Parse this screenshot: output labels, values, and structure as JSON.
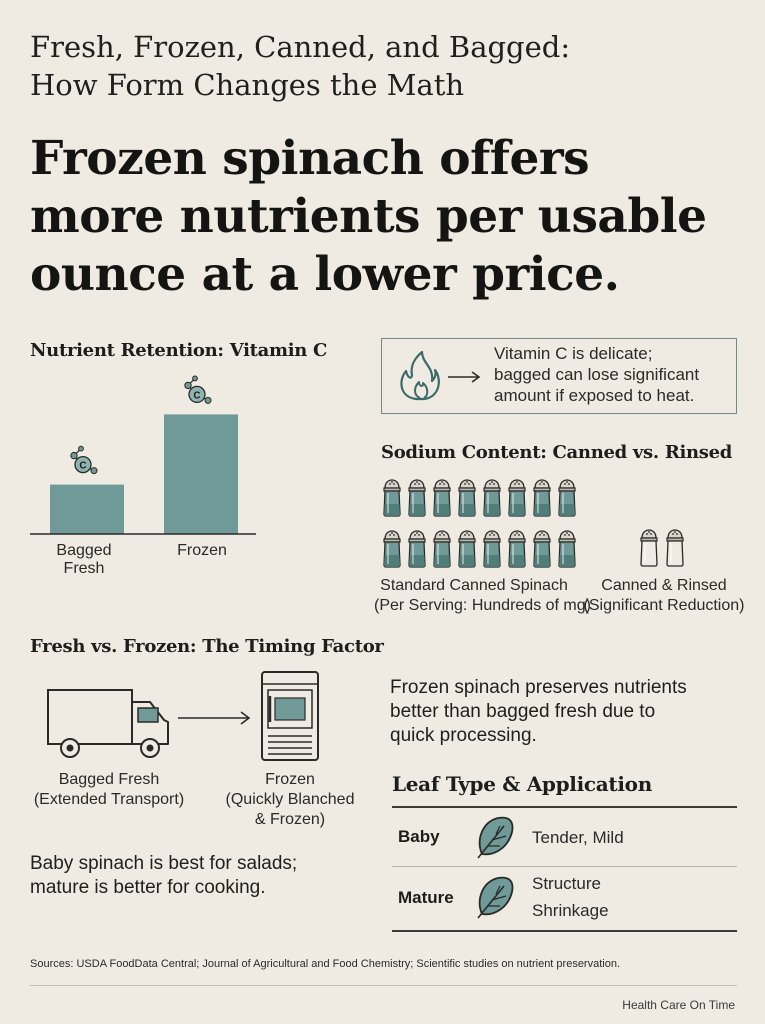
{
  "header": {
    "subtitle_line1": "Fresh, Frozen, Canned, and Bagged:",
    "subtitle_line2": "How Form Changes the Math",
    "headline_line1": "Frozen spinach offers",
    "headline_line2": "more nutrients per usable",
    "headline_line3": "ounce at a lower price."
  },
  "vitamin_c": {
    "heading": "Nutrient Retention: Vitamin C",
    "icon_letter": "C",
    "note_line1": "Vitamin C is delicate;",
    "note_line2": "bagged can lose significant",
    "note_line3": "amount if exposed to heat."
  },
  "chart_data": {
    "type": "bar",
    "title": "Nutrient Retention: Vitamin C",
    "categories": [
      "Bagged Fresh",
      "Frozen"
    ],
    "values": [
      38,
      92
    ],
    "ylim": [
      0,
      100
    ],
    "xlabel": "",
    "ylabel": "",
    "grid": false,
    "color": "#6f9a98"
  },
  "sodium": {
    "heading": "Sodium Content: Canned vs. Rinsed",
    "standard_count": 16,
    "rinsed_count": 2,
    "standard_label_line1": "Standard Canned Spinach",
    "standard_label_line2": "(Per Serving: Hundreds of mg)",
    "rinsed_label_line1": "Canned & Rinsed",
    "rinsed_label_line2": "(Significant Reduction)"
  },
  "timing": {
    "heading": "Fresh vs. Frozen: The Timing Factor",
    "bagged_line1": "Bagged Fresh",
    "bagged_line2": "(Extended Transport)",
    "frozen_line1": "Frozen",
    "frozen_line2": "(Quickly Blanched",
    "frozen_line3": "& Frozen)",
    "note_line1": "Frozen spinach preserves nutrients",
    "note_line2": "better than bagged fresh due to",
    "note_line3": "quick processing.",
    "tip_line1": "Baby spinach is best for salads;",
    "tip_line2": "mature is better for cooking."
  },
  "leaf": {
    "heading": "Leaf Type & Application",
    "rows": [
      {
        "type": "Baby",
        "desc_line1": "Tender, Mild",
        "desc_line2": ""
      },
      {
        "type": "Mature",
        "desc_line1": "Structure",
        "desc_line2": "Shrinkage"
      }
    ]
  },
  "footer": {
    "sources": "Sources: USDA FoodData Central; Journal of Agricultural and Food Chemistry; Scientific studies on nutrient preservation.",
    "brand": "Health Care On Time"
  },
  "colors": {
    "background": "#efebe2",
    "teal": "#6f9a98",
    "dark": "#1d1d1b"
  }
}
